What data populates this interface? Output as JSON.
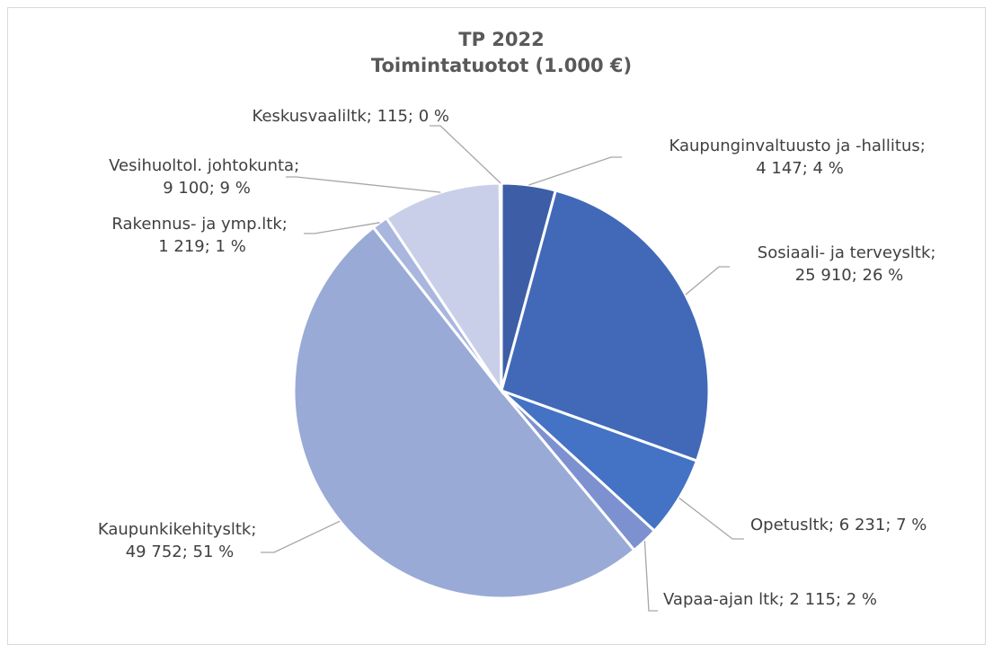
{
  "chart_data": {
    "type": "pie",
    "title": "TP 2022",
    "subtitle": "Toimintatuotot (1.000 €)",
    "categories": [
      "Kaupunginvaltuusto ja -hallitus",
      "Sosiaali- ja terveysltk",
      "Opetusltk",
      "Vapaa-ajan ltk",
      "Kaupunkikehitysltk",
      "Rakennus- ja ymp.ltk",
      "Vesihuoltol. johtokunta",
      "Keskusvaaliltk"
    ],
    "values": [
      4147,
      25910,
      6231,
      2115,
      49752,
      1219,
      9100,
      115
    ],
    "value_labels": [
      "4 147",
      "25 910",
      "6 231",
      "2 115",
      "49 752",
      "1 219",
      "9 100",
      "115"
    ],
    "percent_labels": [
      "4 %",
      "26 %",
      "7 %",
      "2 %",
      "51 %",
      "1 %",
      "9 %",
      "0 %"
    ],
    "label_separator": "; ",
    "colors": [
      "#3d5ea6",
      "#4169b8",
      "#4472c4",
      "#7d91d0",
      "#9aaad6",
      "#a9b6de",
      "#c9cfe8",
      "#dde1f0"
    ]
  }
}
